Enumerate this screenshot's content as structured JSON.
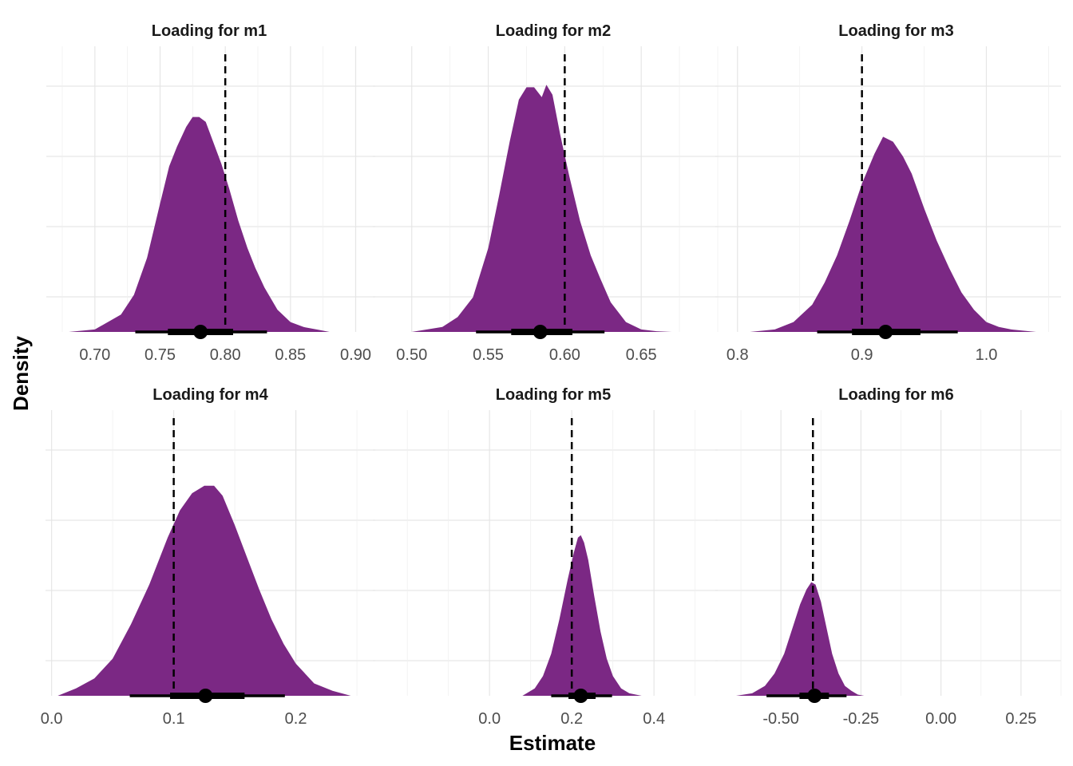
{
  "chart_data": {
    "type": "area",
    "subtype": "density with point-interval (median, 66% and 95% intervals) and dashed reference line",
    "xlabel": "Estimate",
    "ylabel": "Density",
    "fill_color": "#7B2884",
    "interval_color": "#000000",
    "reference_line_style": "dashed",
    "grid": true,
    "panels": [
      {
        "title": "Loading for m1",
        "xlim": [
          0.675,
          0.915
        ],
        "xticks": [
          0.7,
          0.75,
          0.8,
          0.85,
          0.9
        ],
        "xtick_labels": [
          "0.70",
          "0.75",
          "0.80",
          "0.85",
          "0.90"
        ],
        "reference": 0.8,
        "median": 0.781,
        "interval_66": [
          0.756,
          0.806
        ],
        "interval_95": [
          0.731,
          0.832
        ],
        "density": {
          "x": [
            0.68,
            0.7,
            0.72,
            0.73,
            0.74,
            0.75,
            0.757,
            0.763,
            0.77,
            0.775,
            0.78,
            0.785,
            0.79,
            0.797,
            0.803,
            0.81,
            0.817,
            0.823,
            0.83,
            0.84,
            0.85,
            0.86,
            0.87,
            0.88
          ],
          "y": [
            0.0,
            0.01,
            0.07,
            0.15,
            0.3,
            0.52,
            0.67,
            0.75,
            0.83,
            0.87,
            0.87,
            0.85,
            0.78,
            0.68,
            0.58,
            0.45,
            0.34,
            0.26,
            0.18,
            0.09,
            0.04,
            0.02,
            0.01,
            0.0
          ]
        }
      },
      {
        "title": "Loading for m2",
        "xlim": [
          0.485,
          0.7
        ],
        "xticks": [
          0.5,
          0.55,
          0.6,
          0.65
        ],
        "xtick_labels": [
          "0.50",
          "0.55",
          "0.60",
          "0.65"
        ],
        "reference": 0.6,
        "median": 0.584,
        "interval_66": [
          0.565,
          0.605
        ],
        "interval_95": [
          0.542,
          0.626
        ],
        "density": {
          "x": [
            0.5,
            0.52,
            0.53,
            0.54,
            0.55,
            0.557,
            0.564,
            0.57,
            0.575,
            0.58,
            0.585,
            0.588,
            0.592,
            0.597,
            0.603,
            0.61,
            0.617,
            0.623,
            0.63,
            0.64,
            0.65,
            0.66,
            0.67
          ],
          "y": [
            0.0,
            0.02,
            0.06,
            0.14,
            0.34,
            0.55,
            0.77,
            0.94,
            0.99,
            0.99,
            0.95,
            1.0,
            0.96,
            0.8,
            0.63,
            0.45,
            0.31,
            0.22,
            0.12,
            0.04,
            0.01,
            0.003,
            0.0
          ]
        }
      },
      {
        "title": "Loading for m3",
        "xlim": [
          0.795,
          1.06
        ],
        "xticks": [
          0.8,
          0.9,
          1.0
        ],
        "xtick_labels": [
          "0.8",
          "0.9",
          "1.0"
        ],
        "reference": 0.9,
        "median": 0.919,
        "interval_66": [
          0.892,
          0.947
        ],
        "interval_95": [
          0.864,
          0.977
        ],
        "density": {
          "x": [
            0.81,
            0.83,
            0.845,
            0.86,
            0.87,
            0.88,
            0.89,
            0.9,
            0.91,
            0.917,
            0.925,
            0.933,
            0.94,
            0.95,
            0.96,
            0.97,
            0.98,
            0.99,
            1.0,
            1.01,
            1.02,
            1.04
          ],
          "y": [
            0.0,
            0.01,
            0.04,
            0.11,
            0.2,
            0.31,
            0.45,
            0.6,
            0.72,
            0.79,
            0.77,
            0.71,
            0.64,
            0.5,
            0.37,
            0.26,
            0.16,
            0.09,
            0.04,
            0.02,
            0.01,
            0.0
          ]
        }
      },
      {
        "title": "Loading for m4",
        "xlim": [
          -0.005,
          0.265
        ],
        "xticks": [
          0.0,
          0.1,
          0.2
        ],
        "xtick_labels": [
          "0.0",
          "0.1",
          "0.2"
        ],
        "reference": 0.1,
        "median": 0.126,
        "interval_66": [
          0.097,
          0.158
        ],
        "interval_95": [
          0.064,
          0.191
        ],
        "density": {
          "x": [
            0.005,
            0.02,
            0.035,
            0.05,
            0.065,
            0.08,
            0.095,
            0.105,
            0.115,
            0.125,
            0.133,
            0.14,
            0.15,
            0.16,
            0.17,
            0.18,
            0.19,
            0.2,
            0.215,
            0.23,
            0.245
          ],
          "y": [
            0.0,
            0.03,
            0.07,
            0.15,
            0.29,
            0.45,
            0.64,
            0.75,
            0.82,
            0.85,
            0.85,
            0.81,
            0.69,
            0.56,
            0.43,
            0.31,
            0.21,
            0.13,
            0.05,
            0.02,
            0.0
          ]
        }
      },
      {
        "title": "Loading for m5",
        "xlim": [
          -0.245,
          0.555
        ],
        "xticks": [
          0.0,
          0.2,
          0.4
        ],
        "xtick_labels": [
          "0.0",
          "0.2",
          "0.4"
        ],
        "reference": 0.2,
        "median": 0.222,
        "interval_66": [
          0.192,
          0.258
        ],
        "interval_95": [
          0.15,
          0.298
        ],
        "density": {
          "x": [
            0.08,
            0.11,
            0.13,
            0.15,
            0.17,
            0.19,
            0.205,
            0.215,
            0.222,
            0.23,
            0.24,
            0.255,
            0.27,
            0.285,
            0.3,
            0.32,
            0.34,
            0.37
          ],
          "y": [
            0.0,
            0.03,
            0.08,
            0.17,
            0.31,
            0.47,
            0.58,
            0.64,
            0.65,
            0.62,
            0.55,
            0.4,
            0.26,
            0.15,
            0.08,
            0.03,
            0.01,
            0.0
          ]
        }
      },
      {
        "title": "Loading for m6",
        "xlim": [
          -0.655,
          0.375
        ],
        "xticks": [
          -0.5,
          -0.25,
          0.0,
          0.25
        ],
        "xtick_labels": [
          "-0.50",
          "-0.25",
          "0.00",
          "0.25"
        ],
        "reference": -0.4,
        "median": -0.395,
        "interval_66": [
          -0.442,
          -0.35
        ],
        "interval_95": [
          -0.545,
          -0.295
        ],
        "density": {
          "x": [
            -0.64,
            -0.59,
            -0.55,
            -0.52,
            -0.49,
            -0.46,
            -0.44,
            -0.42,
            -0.405,
            -0.392,
            -0.375,
            -0.36,
            -0.34,
            -0.32,
            -0.3,
            -0.28,
            -0.26,
            -0.24
          ],
          "y": [
            0.0,
            0.01,
            0.04,
            0.09,
            0.17,
            0.29,
            0.37,
            0.43,
            0.46,
            0.45,
            0.38,
            0.29,
            0.17,
            0.09,
            0.04,
            0.02,
            0.005,
            0.0
          ]
        }
      }
    ]
  }
}
